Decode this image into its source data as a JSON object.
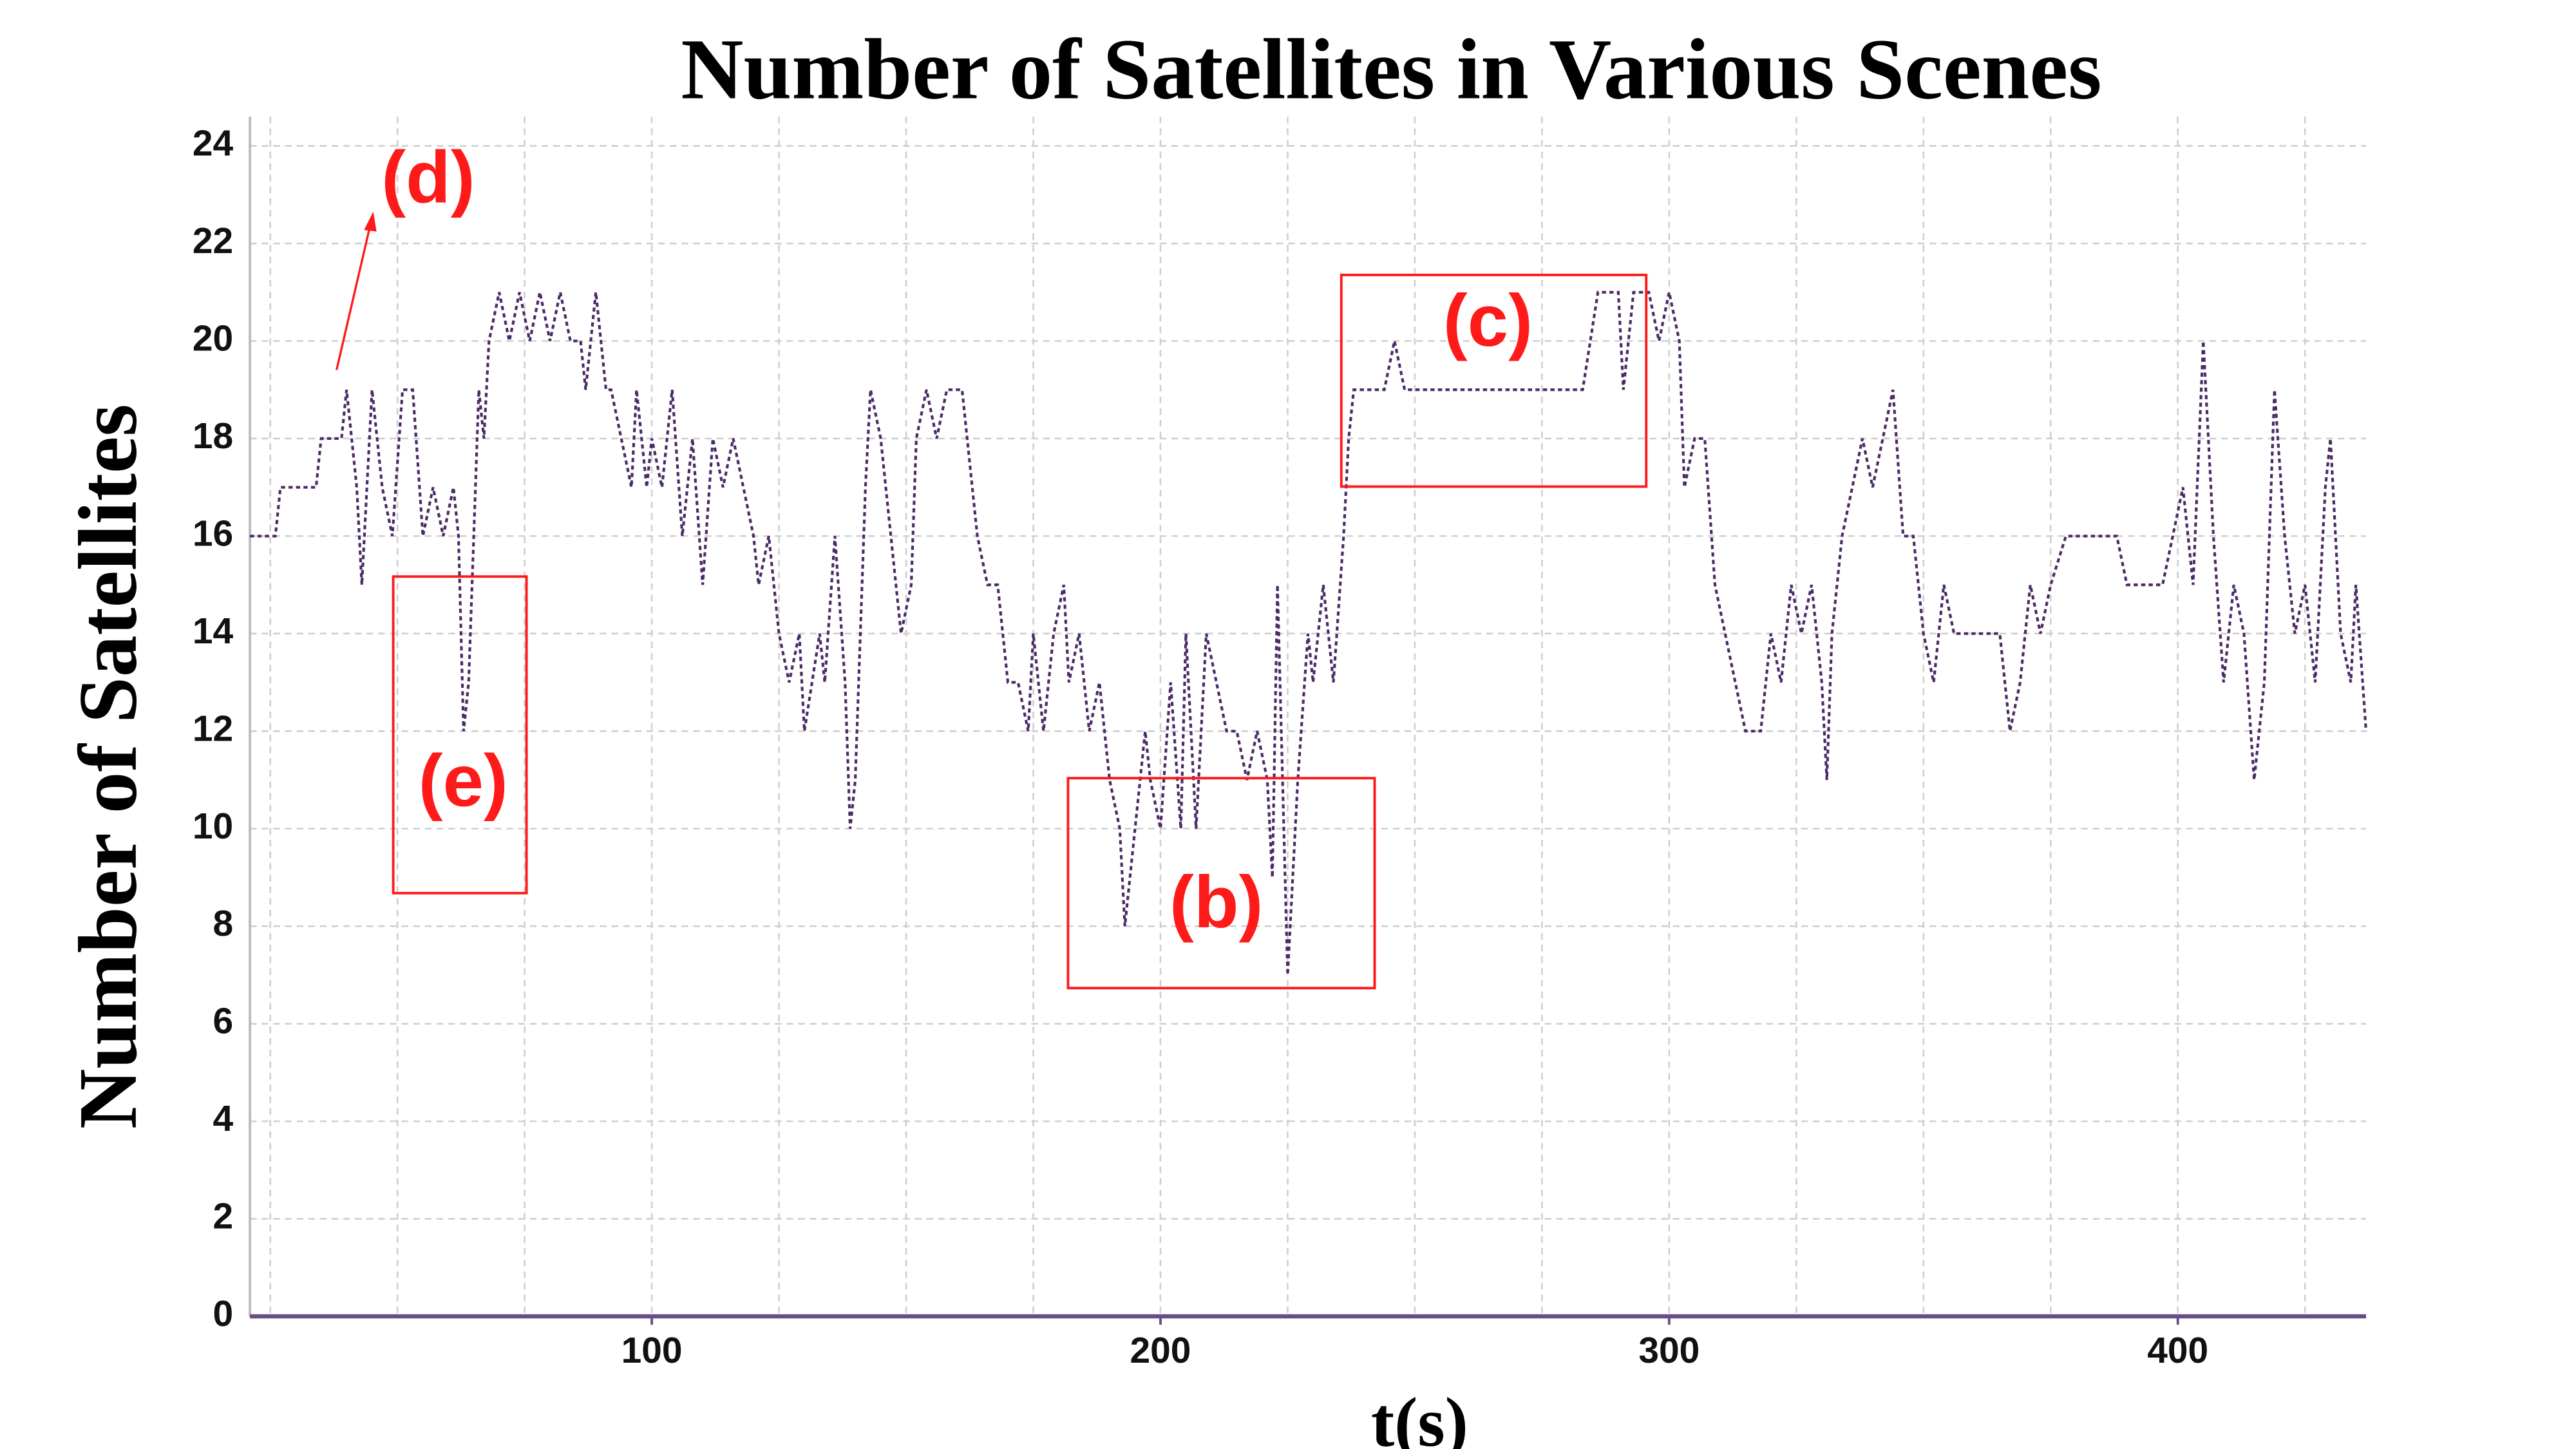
{
  "chart_data": {
    "type": "line",
    "title": "Number of Satellites in Various Scenes",
    "x_label": "t(s)",
    "y_label": "Number of Satellites",
    "xlim": [
      21,
      437
    ],
    "ylim": [
      0,
      24.6
    ],
    "xticks": [
      100,
      200,
      300,
      400
    ],
    "xgrid": [
      25,
      50,
      75,
      100,
      125,
      150,
      175,
      200,
      225,
      250,
      275,
      300,
      325,
      350,
      375,
      400,
      425
    ],
    "yticks": [
      0,
      2,
      4,
      6,
      8,
      10,
      12,
      14,
      16,
      18,
      20,
      22,
      24
    ],
    "grid": true,
    "annotations": [
      "(b)",
      "(c)",
      "(d)",
      "(e)"
    ],
    "series": [
      {
        "color": "#4b2a66",
        "x": [
          21,
          26,
          27,
          34,
          35,
          39,
          40,
          42,
          43,
          45,
          47,
          49,
          51,
          53,
          55,
          57,
          59,
          61,
          62,
          63,
          64,
          66,
          67,
          68,
          70,
          72,
          74,
          76,
          78,
          80,
          82,
          84,
          86,
          87,
          89,
          91,
          92,
          94,
          96,
          97,
          99,
          100,
          102,
          104,
          106,
          108,
          110,
          112,
          114,
          116,
          118,
          120,
          121,
          123,
          125,
          127,
          129,
          130,
          133,
          134,
          136,
          138,
          139,
          140,
          142,
          143,
          145,
          147,
          149,
          151,
          152,
          154,
          156,
          158,
          161,
          164,
          166,
          168,
          170,
          172,
          174,
          175,
          177,
          179,
          181,
          182,
          184,
          186,
          188,
          190,
          192,
          193,
          195,
          197,
          198,
          200,
          202,
          204,
          205,
          207,
          209,
          211,
          213,
          215,
          217,
          219,
          221,
          222,
          223,
          225,
          227,
          229,
          230,
          232,
          234,
          236,
          237,
          238,
          244,
          246,
          248,
          260,
          283,
          286,
          290,
          291,
          293,
          296,
          298,
          300,
          302,
          303,
          305,
          307,
          309,
          311,
          313,
          315,
          318,
          320,
          322,
          324,
          326,
          328,
          330,
          331,
          332,
          334,
          336,
          338,
          340,
          342,
          344,
          346,
          348,
          350,
          352,
          354,
          356,
          365,
          367,
          369,
          371,
          373,
          375,
          378,
          388,
          390,
          397,
          399,
          401,
          403,
          405,
          407,
          409,
          411,
          413,
          415,
          417,
          419,
          421,
          423,
          425,
          427,
          429,
          430,
          432,
          434,
          435,
          437
        ],
        "values": [
          16,
          16,
          17,
          17,
          18,
          18,
          19,
          17,
          15,
          19,
          17,
          16,
          19,
          19,
          16,
          17,
          16,
          17,
          16,
          12,
          13,
          19,
          18,
          20,
          21,
          20,
          21,
          20,
          21,
          20,
          21,
          20,
          20,
          19,
          21,
          19,
          19,
          18,
          17,
          19,
          17,
          18,
          17,
          19,
          16,
          18,
          15,
          18,
          17,
          18,
          17,
          16,
          15,
          16,
          14,
          13,
          14,
          12,
          14,
          13,
          16,
          13,
          10,
          11,
          17,
          19,
          18,
          16,
          14,
          15,
          18,
          19,
          18,
          19,
          19,
          16,
          15,
          15,
          13,
          13,
          12,
          14,
          12,
          14,
          15,
          13,
          14,
          12,
          13,
          11,
          10,
          8,
          10,
          12,
          11,
          10,
          13,
          10,
          14,
          10,
          14,
          13,
          12,
          12,
          11,
          12,
          11,
          9,
          15,
          7,
          11,
          14,
          13,
          15,
          13,
          16,
          18,
          19,
          19,
          20,
          19,
          19,
          19,
          21,
          21,
          19,
          21,
          21,
          20,
          21,
          20,
          17,
          18,
          18,
          15,
          14,
          13,
          12,
          12,
          14,
          13,
          15,
          14,
          15,
          13,
          11,
          14,
          16,
          17,
          18,
          17,
          18,
          19,
          16,
          16,
          14,
          13,
          15,
          14,
          14,
          12,
          13,
          15,
          14,
          15,
          16,
          16,
          15,
          15,
          16,
          17,
          15,
          20,
          16,
          13,
          15,
          14,
          11,
          13,
          19,
          16,
          14,
          15,
          13,
          17,
          18,
          14,
          13,
          15,
          12
        ]
      }
    ]
  }
}
